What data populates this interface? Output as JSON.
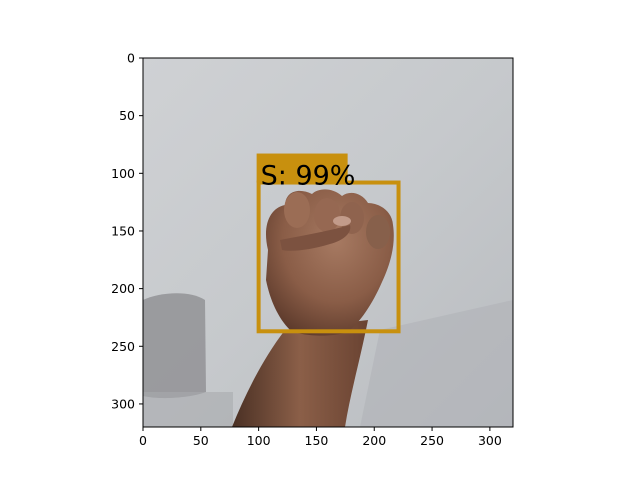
{
  "image": {
    "description_icon": "photo-of-fist",
    "background_color": "#c7cacd"
  },
  "axes": {
    "x_ticks": [
      "0",
      "50",
      "100",
      "150",
      "200",
      "250",
      "300"
    ],
    "y_ticks": [
      "0",
      "50",
      "100",
      "150",
      "200",
      "250",
      "300"
    ],
    "x_range": [
      0,
      320
    ],
    "y_range": [
      0,
      320
    ]
  },
  "detection": {
    "label": "S: 99%",
    "color": "#c8900e",
    "box": {
      "x1": 100,
      "y1": 108,
      "x2": 221,
      "y2": 237
    }
  }
}
